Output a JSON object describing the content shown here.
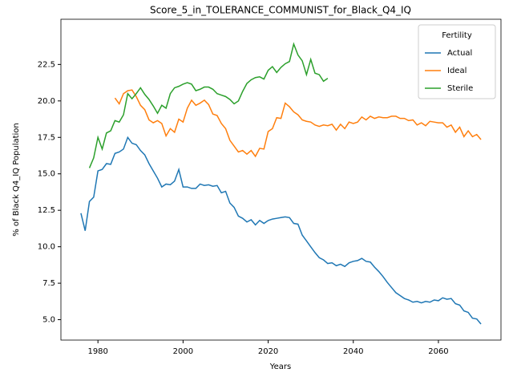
{
  "chart_data": {
    "type": "line",
    "title": "Score_5_in_TOLERANCE_COMMUNIST_for_Black_Q4_IQ",
    "xlabel": "Years",
    "ylabel": "% of Black Q4_IQ Population",
    "legend_title": "Fertility",
    "legend_loc": "upper right",
    "x": [
      1976,
      1977,
      1978,
      1979,
      1980,
      1981,
      1982,
      1983,
      1984,
      1985,
      1986,
      1987,
      1988,
      1989,
      1990,
      1991,
      1992,
      1993,
      1994,
      1995,
      1996,
      1997,
      1998,
      1999,
      2000,
      2001,
      2002,
      2003,
      2004,
      2005,
      2006,
      2007,
      2008,
      2009,
      2010,
      2011,
      2012,
      2013,
      2014,
      2015,
      2016,
      2017,
      2018,
      2019,
      2020,
      2021,
      2022,
      2023,
      2024,
      2025,
      2026,
      2027,
      2028,
      2029,
      2030,
      2031,
      2032,
      2033,
      2034,
      2035,
      2036,
      2037,
      2038,
      2039,
      2040,
      2041,
      2042,
      2043,
      2044,
      2045,
      2046,
      2047,
      2048,
      2049,
      2050,
      2051,
      2052,
      2053,
      2054,
      2055,
      2056,
      2057,
      2058,
      2059,
      2060,
      2061,
      2062,
      2063,
      2064,
      2065,
      2066,
      2067,
      2068,
      2069,
      2070
    ],
    "series": [
      {
        "name": "Actual",
        "color": "#1f77b4",
        "values": [
          12.3,
          11.1,
          13.1,
          13.4,
          15.2,
          15.3,
          15.7,
          15.65,
          16.4,
          16.5,
          16.7,
          17.5,
          17.1,
          17.0,
          16.6,
          16.3,
          15.7,
          15.2,
          14.7,
          14.1,
          14.3,
          14.25,
          14.5,
          15.3,
          14.1,
          14.1,
          14.0,
          14.0,
          14.3,
          14.2,
          14.25,
          14.15,
          14.2,
          13.7,
          13.8,
          13.0,
          12.7,
          12.1,
          11.95,
          11.7,
          11.85,
          11.5,
          11.8,
          11.6,
          11.8,
          11.9,
          11.95,
          12.0,
          12.05,
          12.0,
          11.6,
          11.55,
          10.8,
          10.4,
          10.0,
          9.6,
          9.25,
          9.1,
          8.85,
          8.9,
          8.7,
          8.8,
          8.65,
          8.9,
          9.0,
          9.05,
          9.2,
          9.0,
          8.95,
          8.6,
          8.3,
          7.95,
          7.55,
          7.2,
          6.85,
          6.65,
          6.45,
          6.35,
          6.2,
          6.25,
          6.15,
          6.25,
          6.2,
          6.35,
          6.3,
          6.5,
          6.4,
          6.45,
          6.1,
          6.0,
          5.6,
          5.5,
          5.1,
          5.05,
          4.7
        ]
      },
      {
        "name": "Ideal",
        "color": "#ff7f0e",
        "values": [
          null,
          null,
          null,
          null,
          null,
          null,
          null,
          null,
          20.2,
          19.8,
          20.5,
          20.7,
          20.75,
          20.3,
          19.7,
          19.4,
          18.7,
          18.5,
          18.65,
          18.45,
          17.6,
          18.1,
          17.85,
          18.75,
          18.55,
          19.5,
          20.05,
          19.7,
          19.85,
          20.05,
          19.75,
          19.1,
          19.0,
          18.45,
          18.1,
          17.3,
          16.9,
          16.5,
          16.6,
          16.35,
          16.6,
          16.2,
          16.75,
          16.7,
          17.9,
          18.1,
          18.85,
          18.8,
          19.85,
          19.6,
          19.25,
          19.05,
          18.7,
          18.6,
          18.55,
          18.35,
          18.25,
          18.35,
          18.3,
          18.4,
          18.0,
          18.4,
          18.1,
          18.55,
          18.45,
          18.55,
          18.9,
          18.7,
          18.95,
          18.8,
          18.9,
          18.85,
          18.85,
          18.95,
          18.95,
          18.8,
          18.8,
          18.65,
          18.7,
          18.35,
          18.5,
          18.3,
          18.6,
          18.55,
          18.5,
          18.5,
          18.2,
          18.35,
          17.85,
          18.2,
          17.55,
          17.95,
          17.55,
          17.7,
          17.35
        ]
      },
      {
        "name": "Sterile",
        "color": "#2ca02c",
        "values": [
          null,
          null,
          15.4,
          16.1,
          17.5,
          16.7,
          17.8,
          17.95,
          18.65,
          18.55,
          19.05,
          20.5,
          20.15,
          20.5,
          20.9,
          20.45,
          20.1,
          19.65,
          19.15,
          19.7,
          19.5,
          20.5,
          20.9,
          21.0,
          21.15,
          21.25,
          21.15,
          20.7,
          20.8,
          20.95,
          20.95,
          20.8,
          20.5,
          20.4,
          20.3,
          20.1,
          19.8,
          20.0,
          20.65,
          21.2,
          21.45,
          21.6,
          21.65,
          21.5,
          22.1,
          22.35,
          21.95,
          22.3,
          22.55,
          22.7,
          23.9,
          23.15,
          22.75,
          21.8,
          22.85,
          21.9,
          21.8,
          21.35,
          21.55,
          null,
          null,
          null,
          null,
          null,
          null,
          null,
          null,
          null,
          null,
          null,
          null,
          null,
          null,
          null,
          null,
          null,
          null,
          null,
          null,
          null,
          null,
          null,
          null,
          null,
          null,
          null,
          null,
          null,
          null,
          null,
          null,
          null,
          null,
          null,
          null
        ]
      }
    ],
    "xlim": [
      1971.3,
      2074.7
    ],
    "xticks": [
      1980,
      2000,
      2020,
      2040,
      2060
    ],
    "ylim": [
      3.6,
      25.6
    ],
    "yticks": [
      {
        "value": 5,
        "label": "5.0"
      },
      7.5,
      {
        "value": 10,
        "label": "10.0"
      },
      12.5,
      {
        "value": 15,
        "label": "15.0"
      },
      17.5,
      {
        "value": 20,
        "label": "20.0"
      },
      22.5
    ],
    "grid": false
  }
}
